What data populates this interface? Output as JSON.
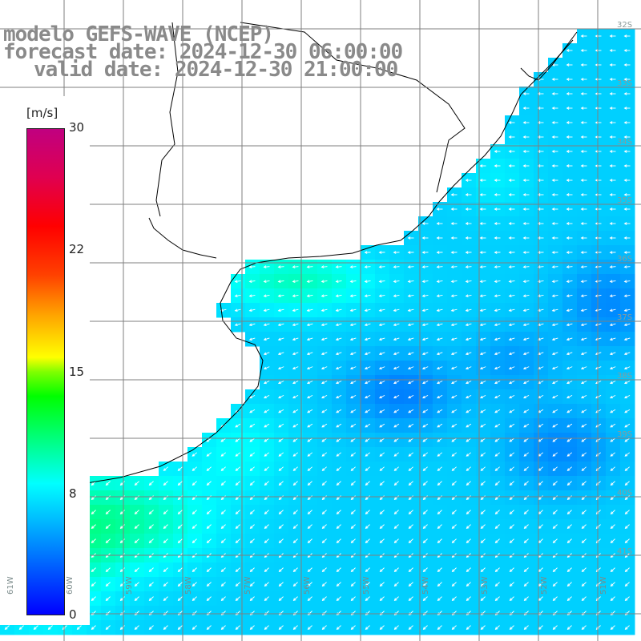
{
  "title": {
    "line1": "modelo GEFS-WAVE (NCEP)",
    "line2": "forecast date: 2024-12-30 06:00:00",
    "line3": "valid date: 2024-12-30 21:00:00"
  },
  "colorbar": {
    "unit": "[m/s]",
    "ticks": [
      "30",
      "22",
      "15",
      "8",
      "0"
    ]
  },
  "axes": {
    "lon_labels": [
      "61W",
      "60W",
      "59W",
      "58W",
      "57W",
      "56W",
      "55W",
      "54W",
      "53W",
      "52W",
      "51W"
    ],
    "lat_labels": [
      "32S",
      "33S",
      "34S",
      "35S",
      "36S",
      "37S",
      "38S",
      "39S",
      "40S",
      "41S"
    ]
  },
  "field": {
    "variable": "wind speed",
    "range": [
      0,
      30
    ],
    "wind_direction": "from east / north-east"
  },
  "colors": {
    "land": "#ffffff",
    "coast": "#000000",
    "grid": "#7f7f7f",
    "title": "#8a8a8a"
  }
}
